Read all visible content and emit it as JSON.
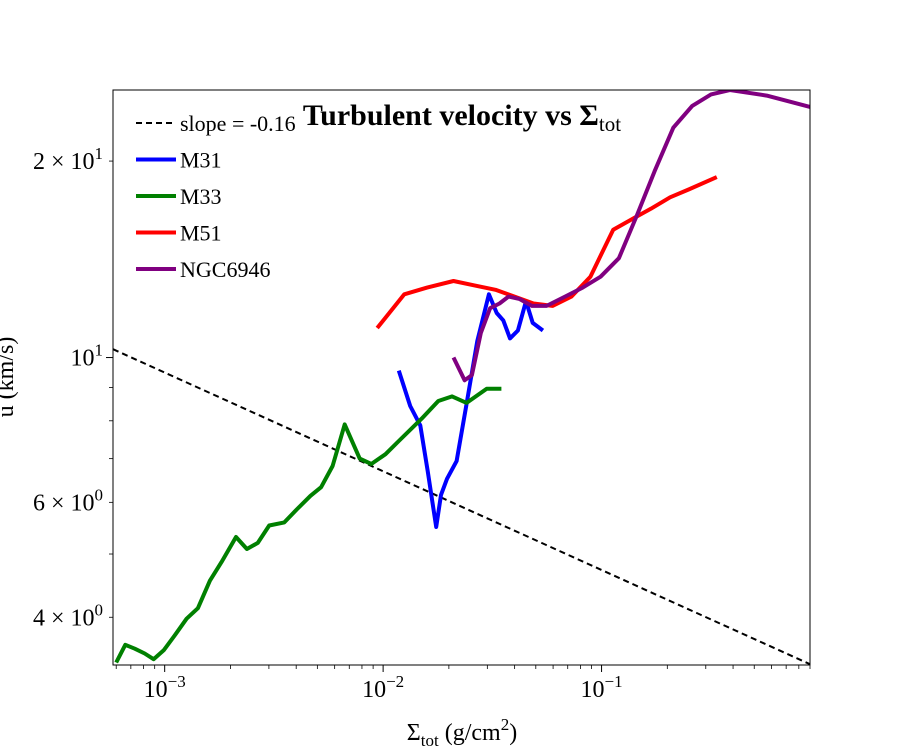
{
  "chart_data": {
    "type": "line",
    "title": "Turbulent velocity vs Σ",
    "title_sub": "tot",
    "xlabel_symbol": "Σ",
    "xlabel_sub": "tot",
    "xlabel_units": " (g/cm",
    "xlabel_sup": "2",
    "xlabel_close": ")",
    "ylabel": "u (km/s)",
    "xscale": "log",
    "yscale": "log",
    "xlim": [
      0.00058,
      0.9
    ],
    "ylim": [
      3.38,
      25.7
    ],
    "xticks": [
      {
        "value": 0.001,
        "base": "10",
        "exp": "−3"
      },
      {
        "value": 0.01,
        "base": "10",
        "exp": "−2"
      },
      {
        "value": 0.1,
        "base": "10",
        "exp": "−1"
      }
    ],
    "yticks": [
      {
        "value": 4,
        "mant": "4 × 10",
        "exp": "0"
      },
      {
        "value": 6,
        "mant": "6 × 10",
        "exp": "0"
      },
      {
        "value": 10,
        "mant": "10",
        "exp": "1"
      },
      {
        "value": 20,
        "mant": "2 × 10",
        "exp": "1"
      }
    ],
    "legend_position": "top-left",
    "series": [
      {
        "name": "slope = -0.16",
        "color": "#000000",
        "dashed": true,
        "x": [
          0.00058,
          0.9
        ],
        "y": [
          10.3,
          3.39
        ]
      },
      {
        "name": "M31",
        "color": "#0000ff",
        "dashed": false,
        "x": [
          0.0118,
          0.0133,
          0.0148,
          0.016,
          0.0175,
          0.0184,
          0.0196,
          0.0217,
          0.024,
          0.027,
          0.0305,
          0.0331,
          0.0355,
          0.0381,
          0.0414,
          0.0451,
          0.0484,
          0.0539
        ],
        "y": [
          9.55,
          8.43,
          7.87,
          6.7,
          5.5,
          6.16,
          6.52,
          6.94,
          8.43,
          10.6,
          12.5,
          11.7,
          11.4,
          10.7,
          11.0,
          12.2,
          11.3,
          11.0
        ]
      },
      {
        "name": "M33",
        "color": "#008000",
        "dashed": false,
        "x": [
          0.0006,
          0.00066,
          0.00073,
          0.00081,
          0.00089,
          0.00099,
          0.00111,
          0.00126,
          0.00142,
          0.00161,
          0.00182,
          0.00212,
          0.00238,
          0.00267,
          0.00301,
          0.00353,
          0.00402,
          0.00465,
          0.0052,
          0.00587,
          0.00667,
          0.00781,
          0.00883,
          0.01025,
          0.0118,
          0.015,
          0.0179,
          0.0207,
          0.0241,
          0.0298,
          0.0348
        ],
        "y": [
          3.41,
          3.63,
          3.58,
          3.52,
          3.45,
          3.56,
          3.75,
          3.98,
          4.13,
          4.55,
          4.86,
          5.31,
          5.09,
          5.2,
          5.53,
          5.59,
          5.85,
          6.14,
          6.33,
          6.82,
          7.9,
          7.0,
          6.87,
          7.11,
          7.45,
          8.06,
          8.58,
          8.72,
          8.52,
          8.96,
          8.96
        ]
      },
      {
        "name": "M51",
        "color": "#ff0000",
        "dashed": false,
        "x": [
          0.0094,
          0.0125,
          0.0159,
          0.021,
          0.0262,
          0.0327,
          0.04,
          0.0488,
          0.0596,
          0.0728,
          0.0889,
          0.113,
          0.138,
          0.168,
          0.206,
          0.251,
          0.337
        ],
        "y": [
          11.1,
          12.5,
          12.8,
          13.1,
          12.9,
          12.7,
          12.4,
          12.1,
          12.0,
          12.4,
          13.3,
          15.7,
          16.3,
          16.9,
          17.6,
          18.1,
          18.9
        ]
      },
      {
        "name": "NGC6946",
        "color": "#800080",
        "dashed": false,
        "x": [
          0.021,
          0.0236,
          0.0255,
          0.028,
          0.0309,
          0.0341,
          0.0375,
          0.042,
          0.048,
          0.056,
          0.068,
          0.082,
          0.099,
          0.12,
          0.145,
          0.175,
          0.213,
          0.26,
          0.317,
          0.387,
          0.57,
          0.9
        ],
        "y": [
          10.0,
          9.23,
          9.4,
          10.9,
          11.9,
          12.1,
          12.4,
          12.3,
          12.0,
          12.0,
          12.4,
          12.8,
          13.3,
          14.2,
          16.5,
          19.3,
          22.5,
          24.3,
          25.3,
          25.7,
          25.2,
          24.2
        ]
      }
    ]
  }
}
